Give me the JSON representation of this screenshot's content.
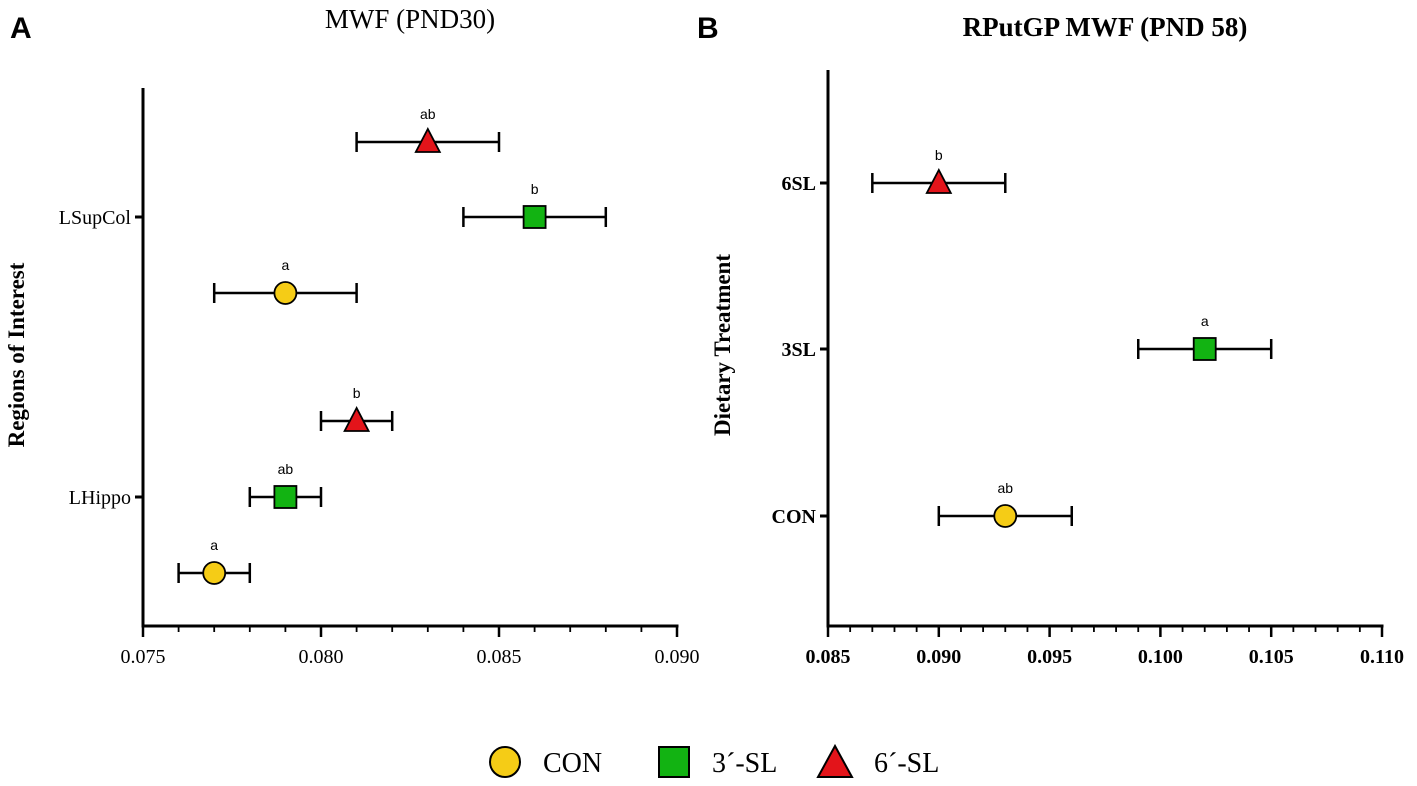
{
  "colors": {
    "CON": "#F5CC16",
    "3SL": "#12B312",
    "6SL": "#E3141A",
    "axis": "#000000"
  },
  "legend": [
    {
      "key": "CON",
      "label": "CON",
      "marker": "circle"
    },
    {
      "key": "3SL",
      "label": "3´-SL",
      "marker": "square"
    },
    {
      "key": "6SL",
      "label": "6´-SL",
      "marker": "triangle"
    }
  ],
  "chart_data": [
    {
      "panel": "A",
      "type": "scatter",
      "title": "MWF (PND30)",
      "xlabel": "",
      "ylabel": "Regions of Interest",
      "xlim": [
        0.075,
        0.09
      ],
      "xticks": [
        "0.075",
        "0.080",
        "0.085",
        "0.090"
      ],
      "categories": [
        "LSupCol",
        "LHippo"
      ],
      "points": [
        {
          "category": "LSupCol",
          "group": "6SL",
          "mean": 0.083,
          "low": 0.081,
          "high": 0.085,
          "sig": "ab"
        },
        {
          "category": "LSupCol",
          "group": "3SL",
          "mean": 0.086,
          "low": 0.084,
          "high": 0.088,
          "sig": "b"
        },
        {
          "category": "LSupCol",
          "group": "CON",
          "mean": 0.079,
          "low": 0.077,
          "high": 0.081,
          "sig": "a"
        },
        {
          "category": "LHippo",
          "group": "6SL",
          "mean": 0.081,
          "low": 0.08,
          "high": 0.082,
          "sig": "b"
        },
        {
          "category": "LHippo",
          "group": "3SL",
          "mean": 0.079,
          "low": 0.078,
          "high": 0.08,
          "sig": "ab"
        },
        {
          "category": "LHippo",
          "group": "CON",
          "mean": 0.077,
          "low": 0.076,
          "high": 0.078,
          "sig": "a"
        }
      ]
    },
    {
      "panel": "B",
      "type": "scatter",
      "title": "RPutGP MWF (PND 58)",
      "xlabel": "",
      "ylabel": "Dietary Treatment",
      "xlim": [
        0.085,
        0.11
      ],
      "xticks": [
        "0.085",
        "0.090",
        "0.095",
        "0.100",
        "0.105",
        "0.110"
      ],
      "categories": [
        "6SL",
        "3SL",
        "CON"
      ],
      "points": [
        {
          "category": "6SL",
          "group": "6SL",
          "mean": 0.09,
          "low": 0.087,
          "high": 0.093,
          "sig": "b"
        },
        {
          "category": "3SL",
          "group": "3SL",
          "mean": 0.102,
          "low": 0.099,
          "high": 0.105,
          "sig": "a"
        },
        {
          "category": "CON",
          "group": "CON",
          "mean": 0.093,
          "low": 0.09,
          "high": 0.096,
          "sig": "ab"
        }
      ]
    }
  ]
}
